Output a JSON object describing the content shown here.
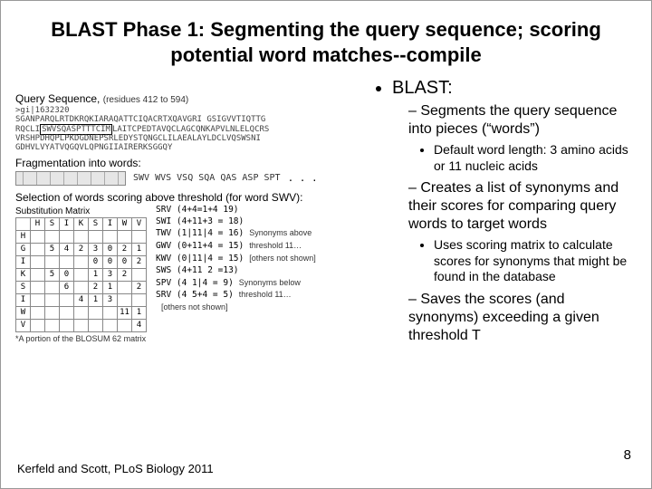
{
  "title": "BLAST Phase 1:  Segmenting the query sequence; scoring potential word matches--compile",
  "left": {
    "querySeqLabel": "Query Sequence,",
    "querySeqSub": "(residues 412 to 594)",
    "seqHeader": ">gi|1632320",
    "seqL1a": "SGANPARQLRTDKRQKIARAQATTCIQACRTXQAVGRI GSIGVVTIQTTG",
    "seqHL": "SWVSQASPTTTCIM",
    "seqL2b": "LAITCPEDTAVQCLAGCQNKAPVLNLELQCRS",
    "seqL3": "VRSHPDHQPLPKDGDNEPSRLEDYSTQNGCLILAEALAYLDCLVQSWSNI",
    "seqL4": "GDHVLVYATVQGQVLQPNGIIAIRERKSGGQY",
    "fragLabel": "Fragmentation into words:",
    "fragWords": "SWV WVS VSQ SQA QAS ASP SPT",
    "fragDots": ". . .",
    "selLabel": "Selection of words scoring above threshold (for word SWV):",
    "substCaption": "Substitution Matrix",
    "substCols": [
      "H",
      "S",
      "I",
      "K",
      "S",
      "I",
      "W",
      "V"
    ],
    "substRows": [
      {
        "h": "H",
        "c": [
          "",
          "",
          "",
          "",
          "",
          "",
          "",
          ""
        ]
      },
      {
        "h": "G",
        "c": [
          "",
          "5",
          "4",
          "2",
          "3",
          "0",
          "2",
          "1"
        ]
      },
      {
        "h": "I",
        "c": [
          "",
          "",
          "",
          "",
          "0",
          "0",
          "0",
          "2"
        ]
      },
      {
        "h": "K",
        "c": [
          "",
          "5",
          "0",
          "",
          "1",
          "3",
          "2",
          ""
        ]
      },
      {
        "h": "S",
        "c": [
          "",
          "",
          "6",
          "",
          "2",
          "1",
          "",
          "2"
        ]
      },
      {
        "h": "I",
        "c": [
          "",
          "",
          "",
          "4",
          "1",
          "3",
          "",
          ""
        ]
      },
      {
        "h": "W",
        "c": [
          "",
          "",
          "",
          "",
          "",
          "",
          "11",
          "1"
        ]
      },
      {
        "h": "V",
        "c": [
          "",
          "",
          "",
          "",
          "",
          "",
          "",
          "4"
        ]
      }
    ],
    "substNote": "*A portion of the BLOSUM 62 matrix",
    "scoreLines": [
      {
        "t": "SRV  (4+4=1+4  19)",
        "n": ""
      },
      {
        "t": "SWI  (4+11+3 = 18)",
        "n": ""
      },
      {
        "t": "TWV (1|11|4 = 16)",
        "n": "Synonyms above"
      },
      {
        "t": "GWV (0+11+4 = 15)",
        "n": "threshold 11…"
      },
      {
        "t": "KWV (0|11|4 = 15)",
        "n": "[others not shown]"
      },
      {
        "t": "SWS (4+11 2  =13)",
        "n": ""
      },
      {
        "t": "SPV  (4 1|4 = 9)",
        "n": "Synonyms below"
      },
      {
        "t": "SRV  (4 5+4 = 5)",
        "n": "threshold 11…"
      },
      {
        "t": "",
        "n": "[others not shown]"
      }
    ]
  },
  "bullets": {
    "l1": "BLAST:",
    "l2a": "Segments the query sequence into pieces (“words”)",
    "l3a": "Default word length:  3 amino acids or 11 nucleic acids",
    "l2b": "Creates a list of synonyms and their scores for comparing query words to target words",
    "l3b": "Uses scoring matrix to calculate scores for synonyms that might be found in the database",
    "l2c": "Saves the scores (and synonyms) exceeding a given threshold T"
  },
  "footer": "Kerfeld and Scott, PLoS Biology 2011",
  "page": "8"
}
